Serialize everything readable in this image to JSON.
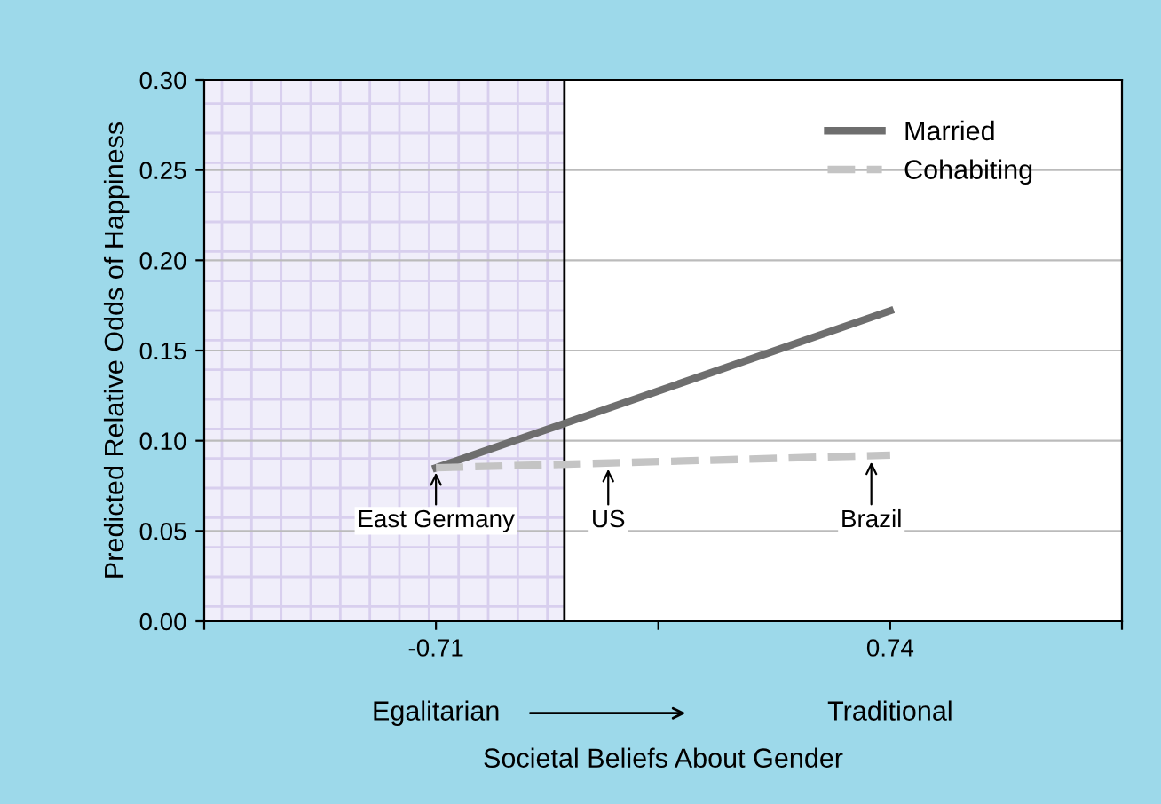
{
  "chart_data": {
    "type": "line",
    "ylabel": "Predicted Relative Odds of Happiness",
    "xlabel": "Societal Beliefs About Gender",
    "xlim": [
      -1.45,
      1.48
    ],
    "xticks": [
      {
        "value": -1.45,
        "label": null
      },
      -0.71,
      {
        "value": 0.0,
        "label": null
      },
      0.74,
      {
        "value": 1.48,
        "label": null
      }
    ],
    "ylim": [
      0,
      0.3
    ],
    "yticks": [
      {
        "value": 0,
        "label": "0.00"
      },
      {
        "value": 0.05,
        "label": "0.05"
      },
      {
        "value": 0.1,
        "label": "0.10"
      },
      {
        "value": 0.15,
        "label": "0.15"
      },
      {
        "value": 0.2,
        "label": "0.20"
      },
      {
        "value": 0.25,
        "label": "0.25"
      },
      {
        "value": 0.3,
        "label": "0.30"
      }
    ],
    "x": [
      -0.71,
      0.74
    ],
    "series": [
      {
        "name": "Married",
        "color": "#6e6e6e",
        "values": [
          0.085,
          0.172
        ],
        "line_style": "solid"
      },
      {
        "name": "Cohabiting",
        "color": "#c4c4c4",
        "values": [
          0.085,
          0.092
        ],
        "line_style": "dashed"
      }
    ],
    "bands": [
      {
        "axis": "x",
        "from": -1.45,
        "to": -0.3,
        "color": "#f0eefa"
      }
    ],
    "ref_lines": [
      {
        "axis": "x",
        "value": -0.3,
        "color": "#000000"
      }
    ],
    "annotations": [
      {
        "text": "East Germany",
        "x": -0.71,
        "y": 0.085
      },
      {
        "text": "US",
        "x": -0.16,
        "y": 0.087
      },
      {
        "text": "Brazil",
        "x": 0.68,
        "y": 0.091
      },
      "Egalitarian",
      "Traditional"
    ],
    "grid": "y",
    "legend": "top right",
    "marker": "none"
  }
}
